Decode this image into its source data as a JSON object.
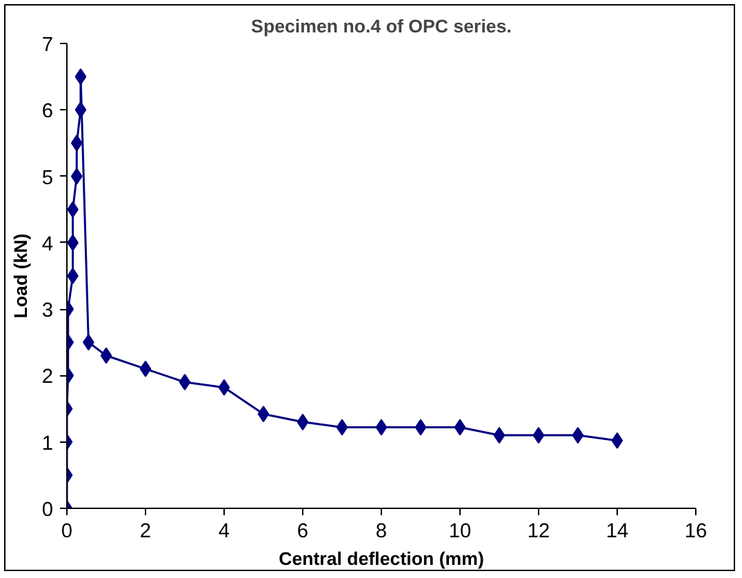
{
  "chart_data": {
    "type": "line",
    "title": "Specimen no.4 of OPC series.",
    "xlabel": "Central deflection (mm)",
    "ylabel": "Load (kN)",
    "series": [
      {
        "color": "#000080",
        "x": [
          0,
          0,
          0,
          0,
          0.03,
          0.03,
          0.03,
          0.15,
          0.15,
          0.15,
          0.25,
          0.25,
          0.35,
          0.35,
          0.55,
          1,
          2,
          3,
          4,
          5,
          6,
          7,
          8,
          9,
          10,
          11,
          12,
          13,
          14
        ],
        "values": [
          0,
          0.5,
          1,
          1.5,
          2,
          2.5,
          3,
          3.5,
          4,
          4.5,
          5,
          5.5,
          6,
          6.5,
          2.5,
          2.3,
          2.1,
          1.9,
          1.82,
          1.42,
          1.3,
          1.22,
          1.22,
          1.22,
          1.22,
          1.1,
          1.1,
          1.1,
          1.02
        ]
      }
    ],
    "xlim": [
      0,
      16
    ],
    "xticks": [
      0,
      2,
      4,
      6,
      8,
      10,
      12,
      14,
      16
    ],
    "ylim": [
      0,
      7
    ],
    "yticks": [
      0,
      1,
      2,
      3,
      4,
      5,
      6,
      7
    ],
    "grid": false,
    "marker": "diamond",
    "line_style": "solid"
  }
}
